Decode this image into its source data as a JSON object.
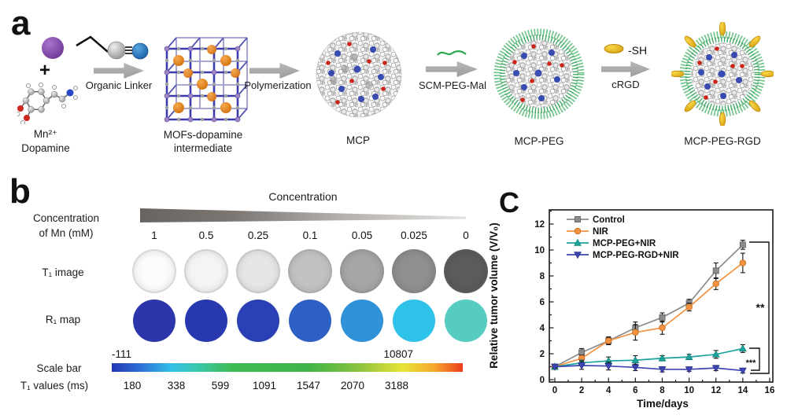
{
  "panel_a": {
    "label": "a",
    "plus": "+",
    "mn_label": "Mn²⁺",
    "dopamine_label": "Dopamine",
    "arrow1_label": "Organic Linker",
    "mof_label_1": "MOFs-dopamine",
    "mof_label_2": "intermediate",
    "arrow2_label": "Polymerization",
    "mcp_label": "MCP",
    "arrow3_label": "SCM-PEG-Mal",
    "mcp_peg_label": "MCP-PEG",
    "sh_label": "-SH",
    "arrow4_label": "cRGD",
    "mcp_peg_rgd_label": "MCP-PEG-RGD"
  },
  "panel_b": {
    "label": "b",
    "wedge_title": "Concentration",
    "conc_label_1": "Concentration",
    "conc_label_2": "of Mn (mM)",
    "concentrations": [
      "1",
      "0.5",
      "0.25",
      "0.1",
      "0.05",
      "0.025",
      "0"
    ],
    "t1_row_label": "T₁ image",
    "r1_row_label": "R₁ map",
    "t1_colors": [
      "#fbfbfa",
      "#f5f4f2",
      "#e7e6e4",
      "#c3c2c0",
      "#a7a6a4",
      "#908f8d",
      "#5c5b59"
    ],
    "r1_colors": [
      "#2b36ab",
      "#2838af",
      "#2a40b5",
      "#2e5fc5",
      "#2f92d8",
      "#2ec2e9",
      "#55cbc1"
    ],
    "scale_bar_label": "Scale bar",
    "scale_min": "-111",
    "scale_max": "10807",
    "scale_gradient": [
      {
        "c": "#2236b4",
        "p": "0%"
      },
      {
        "c": "#2f6fd6",
        "p": "8%"
      },
      {
        "c": "#33c0e8",
        "p": "17%"
      },
      {
        "c": "#3ac8b0",
        "p": "24%"
      },
      {
        "c": "#3fbb55",
        "p": "34%"
      },
      {
        "c": "#3fb447",
        "p": "56%"
      },
      {
        "c": "#8ec43e",
        "p": "71%"
      },
      {
        "c": "#e8e437",
        "p": "83%"
      },
      {
        "c": "#f5a62b",
        "p": "92%"
      },
      {
        "c": "#ec3d1e",
        "p": "100%"
      }
    ],
    "t1_values_label": "T₁ values (ms)",
    "t1_values": [
      "180",
      "338",
      "599",
      "1091",
      "1547",
      "2070",
      "3188"
    ]
  },
  "panel_c": {
    "label": "C"
  },
  "chart_data": {
    "type": "line",
    "title": "",
    "xlabel": "Time/days",
    "ylabel": "Relative tumor volume (V/V₀)",
    "x": [
      0,
      2,
      4,
      6,
      8,
      10,
      12,
      14
    ],
    "xticks": [
      0,
      2,
      4,
      6,
      8,
      10,
      12,
      14,
      16
    ],
    "yticks": [
      0,
      2,
      4,
      6,
      8,
      10,
      12
    ],
    "xlim": [
      0,
      16
    ],
    "ylim": [
      0,
      13.1
    ],
    "grid": false,
    "legend_position": "top-left",
    "series": [
      {
        "name": "Control",
        "color": "#8c8c8c",
        "marker": "square",
        "values": [
          1.0,
          2.1,
          3.0,
          4.0,
          4.8,
          5.9,
          8.4,
          10.4
        ],
        "errors": [
          0.1,
          0.3,
          0.25,
          0.45,
          0.35,
          0.3,
          0.6,
          0.35
        ]
      },
      {
        "name": "NIR",
        "color": "#f5913e",
        "marker": "circle",
        "values": [
          1.0,
          1.65,
          3.0,
          3.65,
          4.0,
          5.6,
          7.4,
          9.0
        ],
        "errors": [
          0.1,
          0.25,
          0.3,
          0.6,
          0.5,
          0.3,
          0.45,
          0.75
        ]
      },
      {
        "name": "MCP-PEG+NIR",
        "color": "#1ba39b",
        "marker": "triangle-up",
        "values": [
          1.0,
          1.3,
          1.45,
          1.5,
          1.65,
          1.75,
          1.95,
          2.4
        ],
        "errors": [
          0.1,
          0.2,
          0.3,
          0.35,
          0.2,
          0.2,
          0.3,
          0.3
        ]
      },
      {
        "name": "MCP-PEG-RGD+NIR",
        "color": "#3c45b2",
        "marker": "triangle-down",
        "values": [
          1.0,
          1.1,
          1.05,
          0.95,
          0.8,
          0.8,
          0.9,
          0.7
        ],
        "errors": [
          0.1,
          0.3,
          0.3,
          0.25,
          0.2,
          0.15,
          0.2,
          0.18
        ]
      }
    ],
    "significance": [
      {
        "label": "**",
        "between": [
          "Control",
          "MCP-PEG-RGD+NIR"
        ]
      },
      {
        "label": "***",
        "between": [
          "MCP-PEG+NIR",
          "MCP-PEG-RGD+NIR"
        ]
      }
    ]
  }
}
